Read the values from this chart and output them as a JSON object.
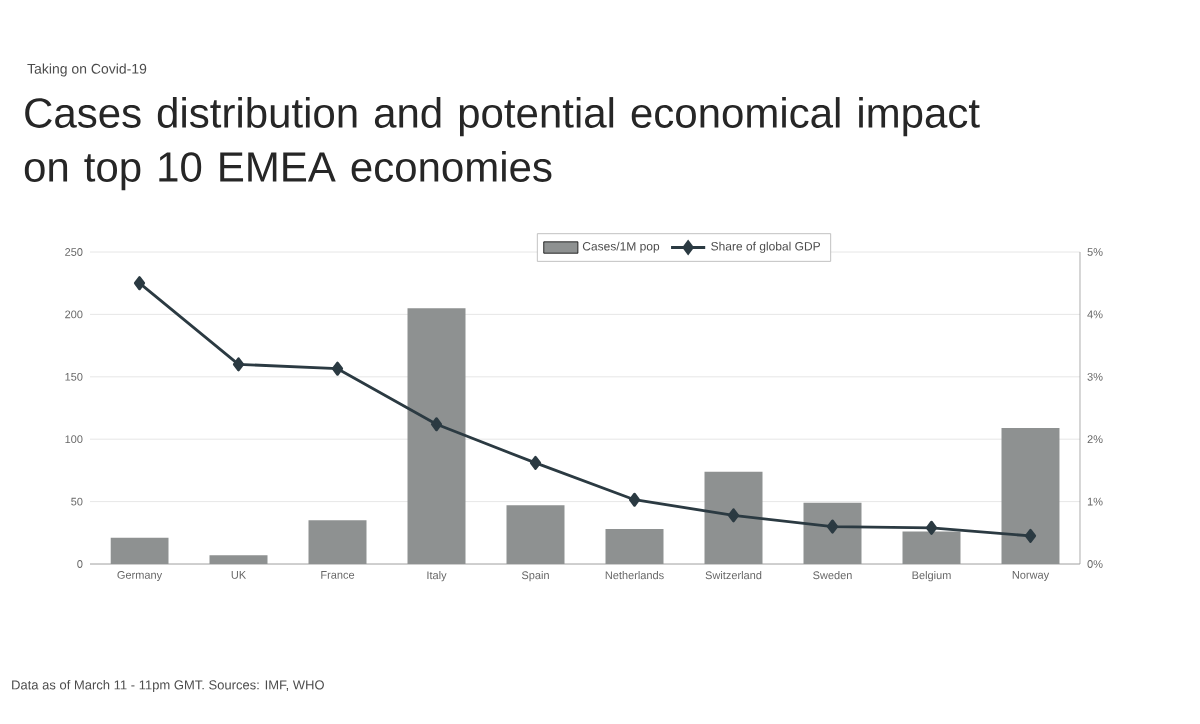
{
  "chart_data": {
    "type": "bar",
    "subtitle": "Taking on Covid-19",
    "title": "Cases distribution and potential economical impact on top 10 EMEA economies",
    "categories": [
      "Germany",
      "UK",
      "France",
      "Italy",
      "Spain",
      "Netherlands",
      "Switzerland",
      "Sweden",
      "Belgium",
      "Norway"
    ],
    "series": [
      {
        "name": "Cases/1M pop",
        "color": "#8e9191",
        "values": [
          21,
          7,
          35,
          205,
          47,
          28,
          74,
          49,
          26,
          109
        ]
      },
      {
        "name": "Share of global GDP",
        "type": "line",
        "axis": "y2",
        "color": "#2b3a42",
        "marker": "diamond",
        "values": [
          4.5,
          3.2,
          3.13,
          2.24,
          1.62,
          1.03,
          0.78,
          0.6,
          0.58,
          0.45
        ]
      }
    ],
    "ylim": [
      0,
      250
    ],
    "yticks": [
      0,
      50,
      100,
      150,
      200,
      250
    ],
    "y2lim": [
      0,
      5
    ],
    "y2ticks": [
      {
        "value": 0,
        "label": "0%"
      },
      {
        "value": 1,
        "label": "1%"
      },
      {
        "value": 2,
        "label": "2%"
      },
      {
        "value": 3,
        "label": "3%"
      },
      {
        "value": 4,
        "label": "4%"
      },
      {
        "value": 5,
        "label": "5%"
      }
    ],
    "grid": "y",
    "legend": "top",
    "annotations": [
      "Data as of March 11 - 11pm GMT. Sources: IMF, WHO"
    ]
  }
}
